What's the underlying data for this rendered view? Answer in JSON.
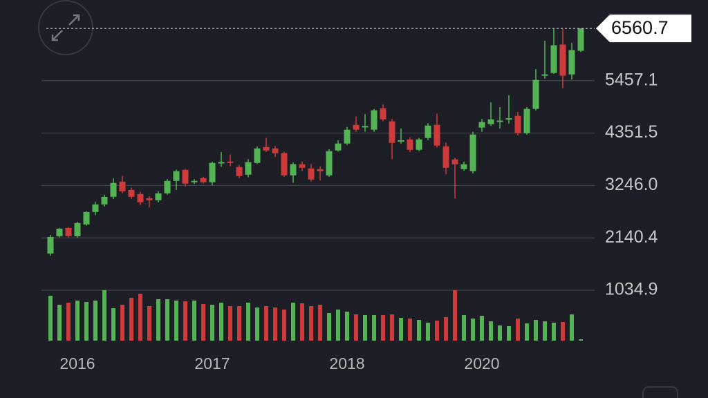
{
  "chart_data": {
    "type": "candlestick",
    "categories": [
      null,
      null,
      null,
      "2016",
      null,
      null,
      null,
      null,
      null,
      null,
      null,
      null,
      null,
      null,
      null,
      null,
      null,
      null,
      "2017",
      null,
      null,
      null,
      null,
      null,
      null,
      null,
      null,
      null,
      null,
      null,
      null,
      null,
      null,
      "2018",
      null,
      null,
      null,
      null,
      null,
      null,
      null,
      null,
      null,
      null,
      null,
      null,
      null,
      null,
      "2020",
      null,
      null,
      null,
      null,
      null,
      null,
      null,
      null,
      null,
      null,
      null
    ],
    "open": [
      1809,
      2174,
      2350,
      2174,
      2422,
      2685,
      2846,
      3006,
      3327,
      3152,
      3065,
      2977,
      2933,
      3079,
      3342,
      3576,
      3313,
      3400,
      3313,
      3722,
      3750,
      3634,
      3474,
      3722,
      4058,
      4028,
      3927,
      3459,
      3693,
      3605,
      3590,
      3459,
      3985,
      4131,
      4525,
      4470,
      4423,
      4876,
      4599,
      4190,
      4218,
      3999,
      4248,
      4525,
      4072,
      3795,
      3590,
      3547,
      4467,
      4540,
      4600,
      4650,
      4715,
      4350,
      4861,
      5570,
      5620,
      6220,
      5590,
      6088
    ],
    "high": [
      2203,
      2350,
      2370,
      2480,
      2700,
      2900,
      3050,
      3400,
      3450,
      3200,
      3110,
      3020,
      3120,
      3380,
      3580,
      3600,
      3380,
      3430,
      3750,
      3950,
      3900,
      3680,
      3800,
      4070,
      4250,
      4080,
      3960,
      3730,
      3750,
      3700,
      3650,
      4010,
      4200,
      4480,
      4700,
      4750,
      4860,
      4960,
      4650,
      4450,
      4260,
      4250,
      4560,
      4760,
      4150,
      3830,
      3750,
      4380,
      4650,
      5000,
      4900,
      5150,
      4800,
      4900,
      5700,
      6300,
      6550,
      6550,
      6250,
      6560.7
    ],
    "low": [
      1765,
      2150,
      2150,
      2150,
      2400,
      2620,
      2800,
      2960,
      3080,
      2960,
      2830,
      2780,
      2890,
      3050,
      3150,
      3220,
      3280,
      3290,
      3250,
      3640,
      3650,
      3400,
      3420,
      3700,
      3950,
      3850,
      3430,
      3300,
      3550,
      3330,
      3350,
      3430,
      3960,
      4100,
      4380,
      4380,
      4380,
      4600,
      3800,
      4130,
      3950,
      3970,
      4200,
      4050,
      3480,
      2970,
      3560,
      3500,
      4380,
      4500,
      4450,
      4550,
      4300,
      4320,
      4830,
      5500,
      5600,
      5300,
      5480,
      6060
    ],
    "close": [
      2159,
      2335,
      2174,
      2452,
      2685,
      2846,
      3006,
      3298,
      3123,
      3006,
      2890,
      2933,
      3079,
      3342,
      3547,
      3284,
      3342,
      3313,
      3722,
      3740,
      3730,
      3445,
      3737,
      4028,
      3985,
      3927,
      3459,
      3693,
      3620,
      3372,
      3547,
      3970,
      4131,
      4423,
      4423,
      4500,
      4832,
      4642,
      4145,
      4200,
      3999,
      4218,
      4510,
      4087,
      3620,
      3693,
      3693,
      4321,
      4584,
      4642,
      4615,
      4665,
      4350,
      4861,
      5474,
      5590,
      6205,
      5562,
      6103,
      6560.7
    ],
    "volume": [
      65,
      52,
      55,
      58,
      56,
      58,
      73,
      47,
      52,
      62,
      68,
      50,
      60,
      60,
      58,
      57,
      58,
      53,
      52,
      55,
      50,
      50,
      55,
      48,
      50,
      48,
      45,
      55,
      54,
      50,
      52,
      40,
      45,
      42,
      38,
      37,
      37,
      37,
      38,
      33,
      32,
      30,
      26,
      29,
      34,
      73,
      37,
      32,
      36,
      28,
      22,
      21,
      32,
      25,
      30,
      28,
      26,
      27,
      38,
      2
    ],
    "up_color": "#54b455",
    "down_color": "#cf3b3a",
    "ylim": [
      1034.9,
      7160
    ],
    "yticks": [
      5457.1,
      4351.5,
      {
        "value": 3246.0,
        "label": "3246.0"
      },
      2140.4,
      1034.9
    ],
    "vlim": [
      0,
      80
    ],
    "last_price": 6560.7,
    "grid": true
  }
}
